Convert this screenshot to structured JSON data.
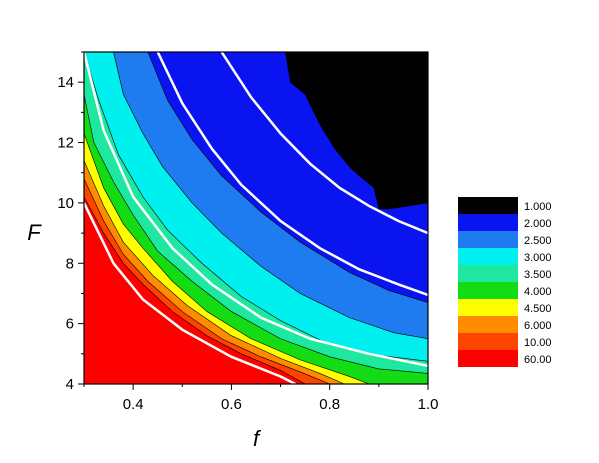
{
  "chart_data": {
    "type": "contour",
    "xlabel": "f",
    "ylabel": "F",
    "xlim": [
      0.3,
      1.0
    ],
    "ylim": [
      4,
      15
    ],
    "xticks": [
      0.4,
      0.6,
      0.8,
      1.0
    ],
    "xtick_labels": [
      "0.4",
      "0.6",
      "0.8",
      "1.0"
    ],
    "yticks": [
      4,
      6,
      8,
      10,
      12,
      14
    ],
    "ytick_labels": [
      "4",
      "6",
      "8",
      "10",
      "12",
      "14"
    ],
    "grid": false,
    "legend_position": "right",
    "legend": [
      {
        "label": "1.000",
        "color": "#000000"
      },
      {
        "label": "2.000",
        "color": "#0a14f0"
      },
      {
        "label": "2.500",
        "color": "#1e7cf0"
      },
      {
        "label": "3.000",
        "color": "#00f0f0"
      },
      {
        "label": "3.500",
        "color": "#1ee8a0"
      },
      {
        "label": "4.000",
        "color": "#14dc14"
      },
      {
        "label": "4.500",
        "color": "#ffff00"
      },
      {
        "label": "6.000",
        "color": "#ff8c00"
      },
      {
        "label": "10.00",
        "color": "#ff4400"
      },
      {
        "label": "60.00",
        "color": "#ff0000"
      }
    ],
    "levels_fill_order": [
      "60.00",
      "10.00",
      "6.000",
      "4.500",
      "4.000",
      "3.500",
      "3.000",
      "2.500",
      "2.000",
      "1.000"
    ],
    "boundaries": [
      {
        "level": "10.00",
        "color": "#ff4400",
        "points": [
          [
            0.3,
            10.2
          ],
          [
            0.34,
            9.0
          ],
          [
            0.38,
            8.0
          ],
          [
            0.42,
            7.3
          ],
          [
            0.48,
            6.4
          ],
          [
            0.55,
            5.6
          ],
          [
            0.62,
            5.0
          ],
          [
            0.7,
            4.45
          ],
          [
            0.75,
            4.0
          ]
        ]
      },
      {
        "level": "6.000",
        "color": "#ff8c00",
        "points": [
          [
            0.3,
            10.8
          ],
          [
            0.34,
            9.4
          ],
          [
            0.38,
            8.3
          ],
          [
            0.43,
            7.4
          ],
          [
            0.5,
            6.4
          ],
          [
            0.58,
            5.5
          ],
          [
            0.66,
            4.9
          ],
          [
            0.74,
            4.4
          ],
          [
            0.8,
            4.0
          ]
        ]
      },
      {
        "level": "4.500",
        "color": "#ffff00",
        "points": [
          [
            0.3,
            11.4
          ],
          [
            0.34,
            9.9
          ],
          [
            0.38,
            8.7
          ],
          [
            0.44,
            7.6
          ],
          [
            0.51,
            6.6
          ],
          [
            0.6,
            5.6
          ],
          [
            0.7,
            4.85
          ],
          [
            0.78,
            4.35
          ],
          [
            0.83,
            4.0
          ]
        ]
      },
      {
        "level": "4.000",
        "color": "#14dc14",
        "points": [
          [
            0.3,
            12.3
          ],
          [
            0.34,
            10.5
          ],
          [
            0.38,
            9.3
          ],
          [
            0.42,
            8.5
          ],
          [
            0.48,
            7.4
          ],
          [
            0.55,
            6.4
          ],
          [
            0.64,
            5.5
          ],
          [
            0.74,
            4.8
          ],
          [
            0.84,
            4.25
          ],
          [
            0.88,
            4.0
          ]
        ]
      },
      {
        "level": "3.500",
        "color": "#1ee8a0",
        "points": [
          [
            0.3,
            13.6
          ],
          [
            0.32,
            12.0
          ],
          [
            0.36,
            10.7
          ],
          [
            0.4,
            9.6
          ],
          [
            0.45,
            8.4
          ],
          [
            0.52,
            7.4
          ],
          [
            0.6,
            6.4
          ],
          [
            0.7,
            5.5
          ],
          [
            0.8,
            4.9
          ],
          [
            0.9,
            4.5
          ],
          [
            1.0,
            4.35
          ]
        ]
      },
      {
        "level": "3.000",
        "color": "#00f0f0",
        "points": [
          [
            0.3,
            15.0
          ],
          [
            0.33,
            13.4
          ],
          [
            0.37,
            11.6
          ],
          [
            0.42,
            10.2
          ],
          [
            0.47,
            9.1
          ],
          [
            0.54,
            8.0
          ],
          [
            0.62,
            6.9
          ],
          [
            0.7,
            6.1
          ],
          [
            0.8,
            5.3
          ],
          [
            0.9,
            4.95
          ],
          [
            1.0,
            4.75
          ]
        ]
      },
      {
        "level": "2.500",
        "color": "#1e7cf0",
        "points": [
          [
            0.36,
            15.0
          ],
          [
            0.38,
            13.6
          ],
          [
            0.42,
            12.3
          ],
          [
            0.46,
            11.2
          ],
          [
            0.52,
            10.0
          ],
          [
            0.58,
            9.0
          ],
          [
            0.66,
            7.9
          ],
          [
            0.74,
            7.0
          ],
          [
            0.84,
            6.2
          ],
          [
            0.93,
            5.7
          ],
          [
            1.0,
            5.5
          ]
        ]
      },
      {
        "level": "2.000",
        "color": "#0a14f0",
        "points": [
          [
            0.3,
            15.0
          ],
          [
            0.3,
            15.0
          ]
        ]
      },
      {
        "level": "1.000",
        "color": "#000000",
        "points": [
          [
            0.71,
            15.0
          ],
          [
            0.72,
            14.0
          ],
          [
            0.75,
            13.6
          ],
          [
            0.78,
            12.6
          ],
          [
            0.81,
            11.8
          ],
          [
            0.84,
            11.2
          ],
          [
            0.86,
            10.9
          ],
          [
            0.89,
            10.5
          ],
          [
            0.9,
            9.8
          ],
          [
            0.92,
            9.8
          ],
          [
            0.96,
            9.9
          ],
          [
            1.0,
            10.0
          ]
        ]
      }
    ],
    "white_curves": [
      {
        "points": [
          [
            0.3,
            10.0
          ],
          [
            0.36,
            8.0
          ],
          [
            0.42,
            6.8
          ],
          [
            0.5,
            5.8
          ],
          [
            0.6,
            4.9
          ],
          [
            0.7,
            4.25
          ],
          [
            0.73,
            4.0
          ]
        ]
      },
      {
        "points": [
          [
            0.3,
            15.0
          ],
          [
            0.34,
            12.4
          ],
          [
            0.4,
            10.2
          ],
          [
            0.48,
            8.5
          ],
          [
            0.56,
            7.3
          ],
          [
            0.66,
            6.2
          ],
          [
            0.76,
            5.5
          ],
          [
            0.88,
            5.0
          ],
          [
            1.0,
            4.6
          ]
        ]
      },
      {
        "points": [
          [
            0.45,
            15.0
          ],
          [
            0.5,
            13.3
          ],
          [
            0.56,
            11.8
          ],
          [
            0.62,
            10.6
          ],
          [
            0.7,
            9.4
          ],
          [
            0.78,
            8.5
          ],
          [
            0.86,
            7.8
          ],
          [
            0.94,
            7.3
          ],
          [
            1.0,
            6.95
          ]
        ]
      },
      {
        "points": [
          [
            0.58,
            15.0
          ],
          [
            0.64,
            13.5
          ],
          [
            0.7,
            12.3
          ],
          [
            0.76,
            11.3
          ],
          [
            0.82,
            10.5
          ],
          [
            0.88,
            9.9
          ],
          [
            0.94,
            9.4
          ],
          [
            1.0,
            9.0
          ]
        ]
      }
    ]
  }
}
